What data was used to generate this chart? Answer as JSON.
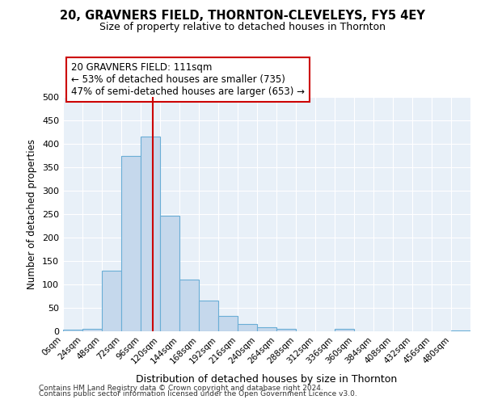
{
  "title1": "20, GRAVNERS FIELD, THORNTON-CLEVELEYS, FY5 4EY",
  "title2": "Size of property relative to detached houses in Thornton",
  "xlabel": "Distribution of detached houses by size in Thornton",
  "ylabel": "Number of detached properties",
  "bin_starts": [
    0,
    24,
    48,
    72,
    96,
    120,
    144,
    168,
    192,
    216,
    240,
    264,
    288,
    312,
    336,
    360,
    384,
    408,
    432,
    456,
    480
  ],
  "bin_width": 24,
  "counts": [
    3,
    5,
    130,
    375,
    415,
    247,
    110,
    65,
    33,
    15,
    8,
    5,
    0,
    0,
    6,
    0,
    0,
    0,
    0,
    0,
    1
  ],
  "bar_color": "#c5d8ec",
  "bar_edge_color": "#6aaed6",
  "property_size": 111,
  "vline_color": "#cc0000",
  "annotation_text": "20 GRAVNERS FIELD: 111sqm\n← 53% of detached houses are smaller (735)\n47% of semi-detached houses are larger (653) →",
  "annotation_box_color": "#ffffff",
  "annotation_box_edge": "#cc0000",
  "ylim": [
    0,
    500
  ],
  "yticks": [
    0,
    50,
    100,
    150,
    200,
    250,
    300,
    350,
    400,
    450,
    500
  ],
  "footnote1": "Contains HM Land Registry data © Crown copyright and database right 2024.",
  "footnote2": "Contains public sector information licensed under the Open Government Licence v3.0.",
  "bg_color": "#e8f0f8",
  "fig_bg_color": "#ffffff"
}
